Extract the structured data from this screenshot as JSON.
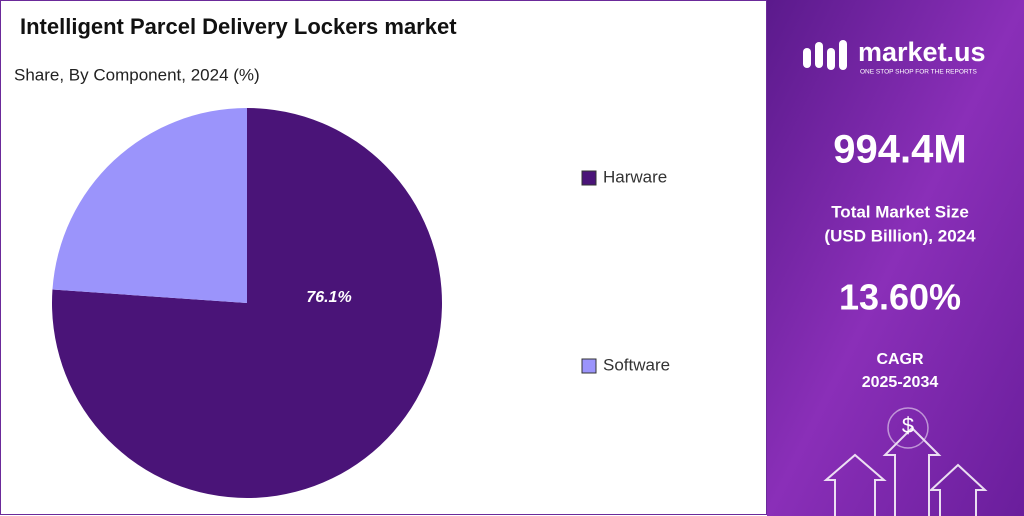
{
  "chart_data": {
    "type": "pie",
    "title": "Intelligent Parcel Delivery Lockers market",
    "subtitle": "Share, By Component, 2024 (%)",
    "categories": [
      "Harware",
      "Software"
    ],
    "values": [
      76.1,
      23.9
    ],
    "value_labels": [
      "76.1%",
      null
    ],
    "colors": [
      "#4a1478",
      "#9b94fb"
    ],
    "legend": "right"
  },
  "panel": {
    "brand": "market.us",
    "tagline": "ONE STOP SHOP FOR THE REPORTS",
    "market_size": "994.4M",
    "market_size_label": [
      "Total Market Size",
      "(USD Billion), 2024"
    ],
    "cagr": "13.60%",
    "cagr_label": [
      "CAGR",
      "2025-2034"
    ],
    "icon": "$"
  }
}
